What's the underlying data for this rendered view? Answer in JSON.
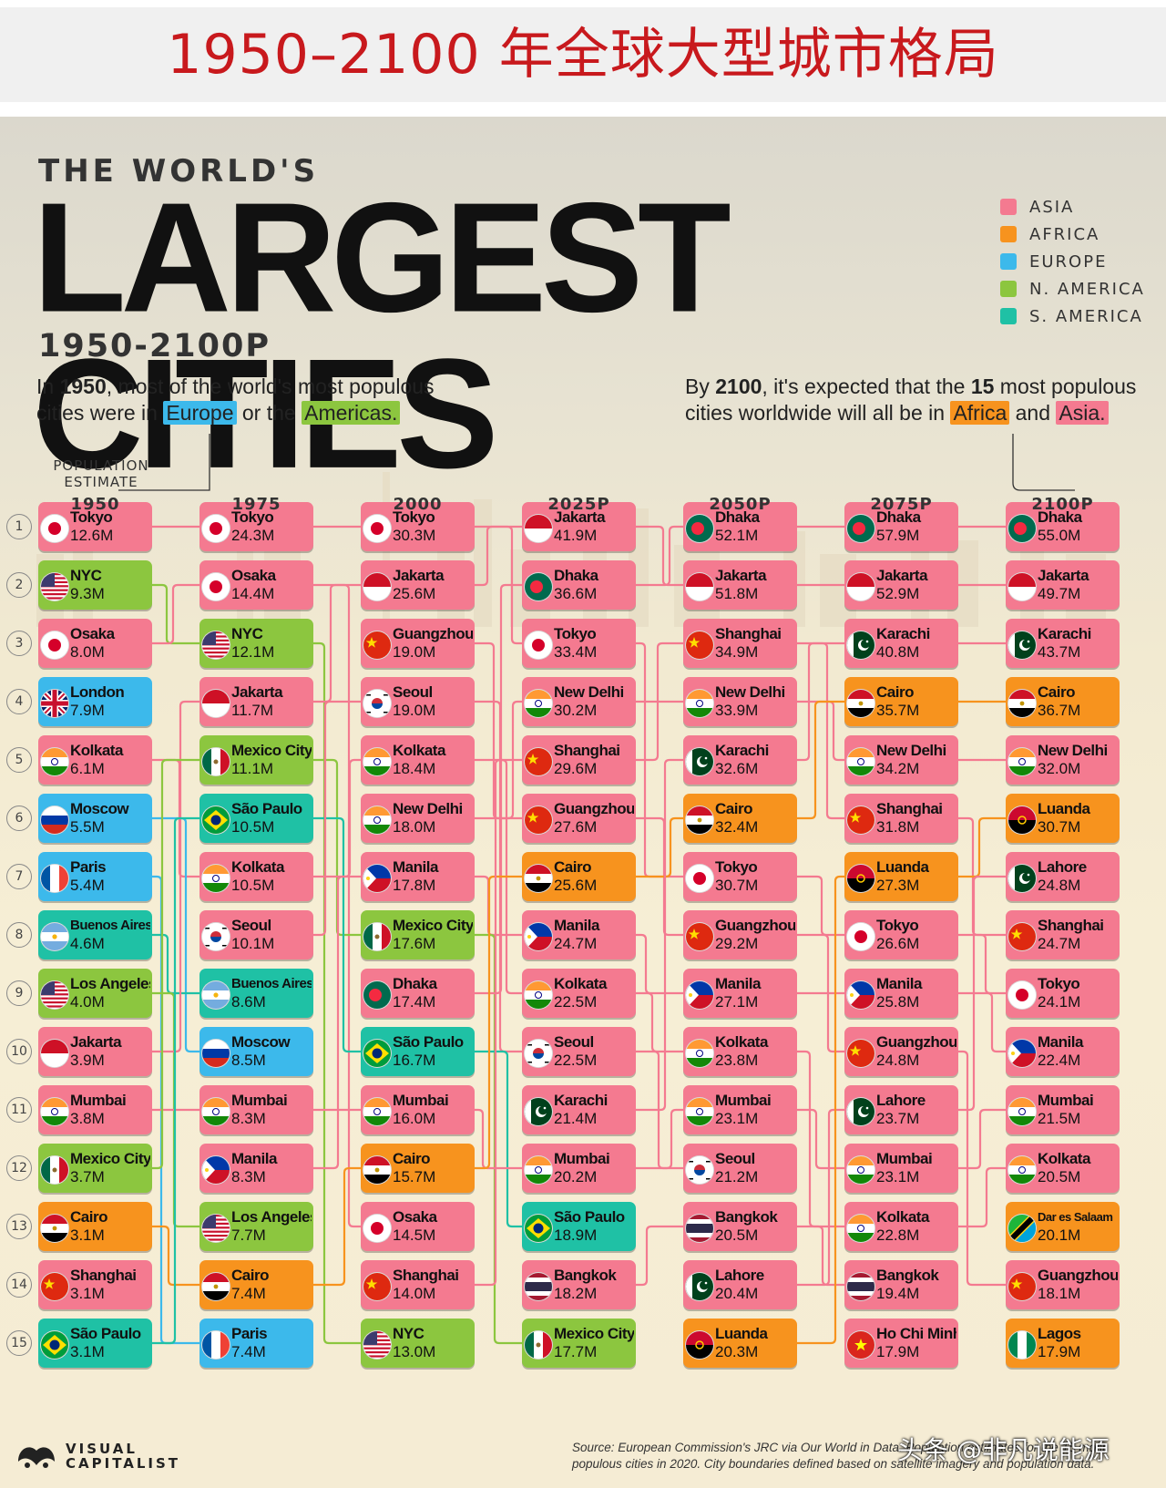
{
  "header": {
    "title": "1950–2100 年全球大型城市格局"
  },
  "poster": {
    "title_pre": "THE WORLD'S",
    "title_main": "LARGEST CITIES",
    "title_sub": "1950-2100P",
    "legend": [
      {
        "label": "ASIA",
        "color": "#f47a90"
      },
      {
        "label": "AFRICA",
        "color": "#f7931e"
      },
      {
        "label": "EUROPE",
        "color": "#3cb9eb"
      },
      {
        "label": "N. AMERICA",
        "color": "#8cc63f"
      },
      {
        "label": "S. AMERICA",
        "color": "#1fc1a5"
      }
    ],
    "note_left": {
      "p1": "In ",
      "b1": "1950",
      "p2": ", most of the world's most populous",
      "p3": "cities were in ",
      "h1": "Europe",
      "p4": " or the ",
      "h2": "Americas."
    },
    "note_right": {
      "p1": "By ",
      "b1": "2100",
      "p2": ", it's expected that the ",
      "b2": "15",
      "p3": " most populous",
      "p4": "cities worldwide will all be in ",
      "h1": "Africa",
      "p5": " and ",
      "h2": "Asia."
    },
    "pop_label": [
      "POPULATION",
      "ESTIMATE"
    ],
    "source": "Source: European Commission's JRC via Our World in Data. Population estimates for the 15 most populous cities in 2020. City boundaries defined based on satellite imagery and population data.",
    "logo": [
      "VISUAL",
      "CAPITALIST"
    ],
    "watermark": "头条 @非凡说能源"
  },
  "chart_data": {
    "type": "table",
    "unit": "M",
    "years": [
      "1950",
      "1975",
      "2000",
      "2025P",
      "2050P",
      "2075P",
      "2100P"
    ],
    "ranks": [
      1,
      2,
      3,
      4,
      5,
      6,
      7,
      8,
      9,
      10,
      11,
      12,
      13,
      14,
      15
    ],
    "region_colors": {
      "asia": "#f47a90",
      "africa": "#f7931e",
      "europe": "#3cb9eb",
      "namerica": "#8cc63f",
      "samerica": "#1fc1a5"
    },
    "columns": [
      [
        {
          "city": "Tokyo",
          "pop": "12.6M",
          "region": "asia",
          "flag": "jp"
        },
        {
          "city": "NYC",
          "pop": "9.3M",
          "region": "namerica",
          "flag": "us"
        },
        {
          "city": "Osaka",
          "pop": "8.0M",
          "region": "asia",
          "flag": "jp"
        },
        {
          "city": "London",
          "pop": "7.9M",
          "region": "europe",
          "flag": "gb"
        },
        {
          "city": "Kolkata",
          "pop": "6.1M",
          "region": "asia",
          "flag": "in"
        },
        {
          "city": "Moscow",
          "pop": "5.5M",
          "region": "europe",
          "flag": "ru"
        },
        {
          "city": "Paris",
          "pop": "5.4M",
          "region": "europe",
          "flag": "fr"
        },
        {
          "city": "Buenos Aires",
          "pop": "4.6M",
          "region": "samerica",
          "flag": "ar"
        },
        {
          "city": "Los Angeles",
          "pop": "4.0M",
          "region": "namerica",
          "flag": "us"
        },
        {
          "city": "Jakarta",
          "pop": "3.9M",
          "region": "asia",
          "flag": "id"
        },
        {
          "city": "Mumbai",
          "pop": "3.8M",
          "region": "asia",
          "flag": "in"
        },
        {
          "city": "Mexico City",
          "pop": "3.7M",
          "region": "namerica",
          "flag": "mx"
        },
        {
          "city": "Cairo",
          "pop": "3.1M",
          "region": "africa",
          "flag": "eg"
        },
        {
          "city": "Shanghai",
          "pop": "3.1M",
          "region": "asia",
          "flag": "cn"
        },
        {
          "city": "São Paulo",
          "pop": "3.1M",
          "region": "samerica",
          "flag": "br"
        }
      ],
      [
        {
          "city": "Tokyo",
          "pop": "24.3M",
          "region": "asia",
          "flag": "jp"
        },
        {
          "city": "Osaka",
          "pop": "14.4M",
          "region": "asia",
          "flag": "jp"
        },
        {
          "city": "NYC",
          "pop": "12.1M",
          "region": "namerica",
          "flag": "us"
        },
        {
          "city": "Jakarta",
          "pop": "11.7M",
          "region": "asia",
          "flag": "id"
        },
        {
          "city": "Mexico City",
          "pop": "11.1M",
          "region": "namerica",
          "flag": "mx"
        },
        {
          "city": "São Paulo",
          "pop": "10.5M",
          "region": "samerica",
          "flag": "br"
        },
        {
          "city": "Kolkata",
          "pop": "10.5M",
          "region": "asia",
          "flag": "in"
        },
        {
          "city": "Seoul",
          "pop": "10.1M",
          "region": "asia",
          "flag": "kr"
        },
        {
          "city": "Buenos Aires",
          "pop": "8.6M",
          "region": "samerica",
          "flag": "ar"
        },
        {
          "city": "Moscow",
          "pop": "8.5M",
          "region": "europe",
          "flag": "ru"
        },
        {
          "city": "Mumbai",
          "pop": "8.3M",
          "region": "asia",
          "flag": "in"
        },
        {
          "city": "Manila",
          "pop": "8.3M",
          "region": "asia",
          "flag": "ph"
        },
        {
          "city": "Los Angeles",
          "pop": "7.7M",
          "region": "namerica",
          "flag": "us"
        },
        {
          "city": "Cairo",
          "pop": "7.4M",
          "region": "africa",
          "flag": "eg"
        },
        {
          "city": "Paris",
          "pop": "7.4M",
          "region": "europe",
          "flag": "fr"
        }
      ],
      [
        {
          "city": "Tokyo",
          "pop": "30.3M",
          "region": "asia",
          "flag": "jp"
        },
        {
          "city": "Jakarta",
          "pop": "25.6M",
          "region": "asia",
          "flag": "id"
        },
        {
          "city": "Guangzhou",
          "pop": "19.0M",
          "region": "asia",
          "flag": "cn"
        },
        {
          "city": "Seoul",
          "pop": "19.0M",
          "region": "asia",
          "flag": "kr"
        },
        {
          "city": "Kolkata",
          "pop": "18.4M",
          "region": "asia",
          "flag": "in"
        },
        {
          "city": "New Delhi",
          "pop": "18.0M",
          "region": "asia",
          "flag": "in"
        },
        {
          "city": "Manila",
          "pop": "17.8M",
          "region": "asia",
          "flag": "ph"
        },
        {
          "city": "Mexico City",
          "pop": "17.6M",
          "region": "namerica",
          "flag": "mx"
        },
        {
          "city": "Dhaka",
          "pop": "17.4M",
          "region": "asia",
          "flag": "bd"
        },
        {
          "city": "São Paulo",
          "pop": "16.7M",
          "region": "samerica",
          "flag": "br"
        },
        {
          "city": "Mumbai",
          "pop": "16.0M",
          "region": "asia",
          "flag": "in"
        },
        {
          "city": "Cairo",
          "pop": "15.7M",
          "region": "africa",
          "flag": "eg"
        },
        {
          "city": "Osaka",
          "pop": "14.5M",
          "region": "asia",
          "flag": "jp"
        },
        {
          "city": "Shanghai",
          "pop": "14.0M",
          "region": "asia",
          "flag": "cn"
        },
        {
          "city": "NYC",
          "pop": "13.0M",
          "region": "namerica",
          "flag": "us"
        }
      ],
      [
        {
          "city": "Jakarta",
          "pop": "41.9M",
          "region": "asia",
          "flag": "id"
        },
        {
          "city": "Dhaka",
          "pop": "36.6M",
          "region": "asia",
          "flag": "bd"
        },
        {
          "city": "Tokyo",
          "pop": "33.4M",
          "region": "asia",
          "flag": "jp"
        },
        {
          "city": "New Delhi",
          "pop": "30.2M",
          "region": "asia",
          "flag": "in"
        },
        {
          "city": "Shanghai",
          "pop": "29.6M",
          "region": "asia",
          "flag": "cn"
        },
        {
          "city": "Guangzhou",
          "pop": "27.6M",
          "region": "asia",
          "flag": "cn"
        },
        {
          "city": "Cairo",
          "pop": "25.6M",
          "region": "africa",
          "flag": "eg"
        },
        {
          "city": "Manila",
          "pop": "24.7M",
          "region": "asia",
          "flag": "ph"
        },
        {
          "city": "Kolkata",
          "pop": "22.5M",
          "region": "asia",
          "flag": "in"
        },
        {
          "city": "Seoul",
          "pop": "22.5M",
          "region": "asia",
          "flag": "kr"
        },
        {
          "city": "Karachi",
          "pop": "21.4M",
          "region": "asia",
          "flag": "pk"
        },
        {
          "city": "Mumbai",
          "pop": "20.2M",
          "region": "asia",
          "flag": "in"
        },
        {
          "city": "São Paulo",
          "pop": "18.9M",
          "region": "samerica",
          "flag": "br"
        },
        {
          "city": "Bangkok",
          "pop": "18.2M",
          "region": "asia",
          "flag": "th"
        },
        {
          "city": "Mexico City",
          "pop": "17.7M",
          "region": "namerica",
          "flag": "mx"
        }
      ],
      [
        {
          "city": "Dhaka",
          "pop": "52.1M",
          "region": "asia",
          "flag": "bd"
        },
        {
          "city": "Jakarta",
          "pop": "51.8M",
          "region": "asia",
          "flag": "id"
        },
        {
          "city": "Shanghai",
          "pop": "34.9M",
          "region": "asia",
          "flag": "cn"
        },
        {
          "city": "New Delhi",
          "pop": "33.9M",
          "region": "asia",
          "flag": "in"
        },
        {
          "city": "Karachi",
          "pop": "32.6M",
          "region": "asia",
          "flag": "pk"
        },
        {
          "city": "Cairo",
          "pop": "32.4M",
          "region": "africa",
          "flag": "eg"
        },
        {
          "city": "Tokyo",
          "pop": "30.7M",
          "region": "asia",
          "flag": "jp"
        },
        {
          "city": "Guangzhou",
          "pop": "29.2M",
          "region": "asia",
          "flag": "cn"
        },
        {
          "city": "Manila",
          "pop": "27.1M",
          "region": "asia",
          "flag": "ph"
        },
        {
          "city": "Kolkata",
          "pop": "23.8M",
          "region": "asia",
          "flag": "in"
        },
        {
          "city": "Mumbai",
          "pop": "23.1M",
          "region": "asia",
          "flag": "in"
        },
        {
          "city": "Seoul",
          "pop": "21.2M",
          "region": "asia",
          "flag": "kr"
        },
        {
          "city": "Bangkok",
          "pop": "20.5M",
          "region": "asia",
          "flag": "th"
        },
        {
          "city": "Lahore",
          "pop": "20.4M",
          "region": "asia",
          "flag": "pk"
        },
        {
          "city": "Luanda",
          "pop": "20.3M",
          "region": "africa",
          "flag": "ao"
        }
      ],
      [
        {
          "city": "Dhaka",
          "pop": "57.9M",
          "region": "asia",
          "flag": "bd"
        },
        {
          "city": "Jakarta",
          "pop": "52.9M",
          "region": "asia",
          "flag": "id"
        },
        {
          "city": "Karachi",
          "pop": "40.8M",
          "region": "asia",
          "flag": "pk"
        },
        {
          "city": "Cairo",
          "pop": "35.7M",
          "region": "africa",
          "flag": "eg"
        },
        {
          "city": "New Delhi",
          "pop": "34.2M",
          "region": "asia",
          "flag": "in"
        },
        {
          "city": "Shanghai",
          "pop": "31.8M",
          "region": "asia",
          "flag": "cn"
        },
        {
          "city": "Luanda",
          "pop": "27.3M",
          "region": "africa",
          "flag": "ao"
        },
        {
          "city": "Tokyo",
          "pop": "26.6M",
          "region": "asia",
          "flag": "jp"
        },
        {
          "city": "Manila",
          "pop": "25.8M",
          "region": "asia",
          "flag": "ph"
        },
        {
          "city": "Guangzhou",
          "pop": "24.8M",
          "region": "asia",
          "flag": "cn"
        },
        {
          "city": "Lahore",
          "pop": "23.7M",
          "region": "asia",
          "flag": "pk"
        },
        {
          "city": "Mumbai",
          "pop": "23.1M",
          "region": "asia",
          "flag": "in"
        },
        {
          "city": "Kolkata",
          "pop": "22.8M",
          "region": "asia",
          "flag": "in"
        },
        {
          "city": "Bangkok",
          "pop": "19.4M",
          "region": "asia",
          "flag": "th"
        },
        {
          "city": "Ho Chi Minh",
          "pop": "17.9M",
          "region": "asia",
          "flag": "vn"
        }
      ],
      [
        {
          "city": "Dhaka",
          "pop": "55.0M",
          "region": "asia",
          "flag": "bd"
        },
        {
          "city": "Jakarta",
          "pop": "49.7M",
          "region": "asia",
          "flag": "id"
        },
        {
          "city": "Karachi",
          "pop": "43.7M",
          "region": "asia",
          "flag": "pk"
        },
        {
          "city": "Cairo",
          "pop": "36.7M",
          "region": "africa",
          "flag": "eg"
        },
        {
          "city": "New Delhi",
          "pop": "32.0M",
          "region": "asia",
          "flag": "in"
        },
        {
          "city": "Luanda",
          "pop": "30.7M",
          "region": "africa",
          "flag": "ao"
        },
        {
          "city": "Lahore",
          "pop": "24.8M",
          "region": "asia",
          "flag": "pk"
        },
        {
          "city": "Shanghai",
          "pop": "24.7M",
          "region": "asia",
          "flag": "cn"
        },
        {
          "city": "Tokyo",
          "pop": "24.1M",
          "region": "asia",
          "flag": "jp"
        },
        {
          "city": "Manila",
          "pop": "22.4M",
          "region": "asia",
          "flag": "ph"
        },
        {
          "city": "Mumbai",
          "pop": "21.5M",
          "region": "asia",
          "flag": "in"
        },
        {
          "city": "Kolkata",
          "pop": "20.5M",
          "region": "asia",
          "flag": "in"
        },
        {
          "city": "Dar es Salaam",
          "pop": "20.1M",
          "region": "africa",
          "flag": "tz"
        },
        {
          "city": "Guangzhou",
          "pop": "18.1M",
          "region": "asia",
          "flag": "cn"
        },
        {
          "city": "Lagos",
          "pop": "17.9M",
          "region": "africa",
          "flag": "ng"
        }
      ]
    ]
  }
}
